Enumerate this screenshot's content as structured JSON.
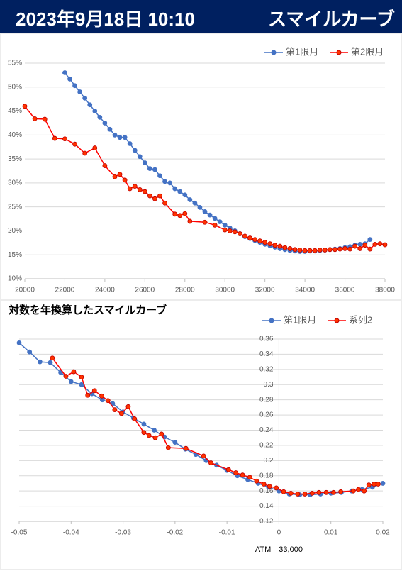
{
  "header": {
    "date": "2023年9月18日 10:10",
    "title": "スマイルカーブ"
  },
  "chart_data": [
    {
      "type": "line",
      "legend": "top-right",
      "grid": true,
      "xlim": [
        20000,
        38000
      ],
      "xticks": [
        20000,
        22000,
        24000,
        26000,
        28000,
        30000,
        32000,
        34000,
        36000,
        38000
      ],
      "ylim": [
        10,
        55
      ],
      "yticks": [
        {
          "value": 10,
          "label": "10%"
        },
        {
          "value": 15,
          "label": "15%"
        },
        {
          "value": 20,
          "label": "20%"
        },
        {
          "value": 25,
          "label": "25%"
        },
        {
          "value": 30,
          "label": "30%"
        },
        {
          "value": 35,
          "label": "35%"
        },
        {
          "value": 40,
          "label": "40%"
        },
        {
          "value": 45,
          "label": "45%"
        },
        {
          "value": 50,
          "label": "50%"
        },
        {
          "value": 55,
          "label": "55%"
        }
      ],
      "series": [
        {
          "name": "第1限月",
          "color": "#4472c4",
          "x": [
            22000,
            22250,
            22500,
            22750,
            23000,
            23250,
            23500,
            23750,
            24000,
            24250,
            24500,
            24750,
            25000,
            25250,
            25500,
            25750,
            26000,
            26250,
            26500,
            26750,
            27000,
            27250,
            27500,
            27750,
            28000,
            28250,
            28500,
            28750,
            29000,
            29250,
            29500,
            29750,
            30000,
            30250,
            30500,
            30750,
            31000,
            31250,
            31500,
            31750,
            32000,
            32250,
            32500,
            32750,
            33000,
            33250,
            33500,
            33750,
            34000,
            34250,
            34500,
            34750,
            35000,
            35250,
            35500,
            35750,
            36000,
            36250,
            36500,
            36750,
            37000,
            37250
          ],
          "values": [
            53,
            51.7,
            50.3,
            49,
            47.7,
            46.3,
            45,
            43.7,
            42.5,
            41.2,
            40,
            39.5,
            39.5,
            38.2,
            36.8,
            35.5,
            34.2,
            33,
            32.8,
            31.5,
            30.3,
            30,
            28.8,
            28.2,
            27.5,
            26.5,
            25.8,
            24.9,
            24,
            23.3,
            22.6,
            21.9,
            21.2,
            20.6,
            20,
            19.4,
            18.8,
            18.4,
            18,
            17.6,
            17.2,
            16.9,
            16.6,
            16.3,
            16.1,
            15.9,
            15.8,
            15.7,
            15.7,
            15.8,
            15.8,
            15.9,
            16,
            16.1,
            16.2,
            16.3,
            16.5,
            16.7,
            17,
            17.2,
            17.3,
            18.2
          ]
        },
        {
          "name": "第2限月",
          "color": "#ff0000",
          "x": [
            20000,
            20500,
            21000,
            21500,
            22000,
            22500,
            23000,
            23500,
            24000,
            24500,
            24750,
            25000,
            25250,
            25500,
            25750,
            26000,
            26250,
            26500,
            26750,
            27000,
            27500,
            27750,
            28000,
            28250,
            29000,
            29500,
            30000,
            30250,
            30500,
            30750,
            31000,
            31250,
            31500,
            31750,
            32000,
            32250,
            32500,
            32750,
            33000,
            33250,
            33500,
            33750,
            34000,
            34250,
            34500,
            34750,
            35000,
            35250,
            35500,
            35750,
            36000,
            36250,
            36500,
            36750,
            37000,
            37250,
            37500,
            37750,
            38000
          ],
          "values": [
            46,
            43.4,
            43.3,
            39.3,
            39.2,
            38.1,
            36.2,
            37.3,
            33.6,
            31.3,
            31.8,
            30.6,
            28.8,
            29.3,
            28.6,
            28.2,
            27.3,
            26.7,
            27.3,
            25.8,
            23.5,
            23.2,
            23.6,
            22,
            21.8,
            21.2,
            20.2,
            20,
            19.8,
            19.4,
            18.9,
            18.5,
            18.2,
            17.9,
            17.6,
            17.3,
            17,
            16.8,
            16.5,
            16.3,
            16.1,
            16,
            15.9,
            15.9,
            15.9,
            16,
            16,
            16.1,
            16.1,
            16.2,
            16.3,
            16.2,
            16.8,
            16.3,
            17,
            16.2,
            17.2,
            17.3,
            17.1
          ]
        }
      ]
    },
    {
      "type": "line",
      "title": "対数を年換算したスマイルカーブ",
      "legend": "top-right",
      "grid": true,
      "annotation": "ATM＝33,000",
      "xlim": [
        -0.05,
        0.02
      ],
      "xticks": [
        -0.05,
        -0.04,
        -0.03,
        -0.02,
        -0.01,
        0,
        0.01,
        0.02
      ],
      "ylim": [
        0.12,
        0.36
      ],
      "yticks": [
        0.12,
        0.14,
        0.16,
        0.18,
        0.2,
        0.22,
        0.24,
        0.26,
        0.28,
        0.3,
        0.32,
        0.34,
        0.36
      ],
      "series": [
        {
          "name": "第1限月",
          "color": "#4472c4",
          "x": [
            -0.05,
            -0.048,
            -0.046,
            -0.044,
            -0.042,
            -0.04,
            -0.038,
            -0.036,
            -0.034,
            -0.032,
            -0.03,
            -0.028,
            -0.026,
            -0.024,
            -0.022,
            -0.02,
            -0.018,
            -0.016,
            -0.014,
            -0.012,
            -0.01,
            -0.008,
            -0.006,
            -0.004,
            -0.002,
            0,
            0.002,
            0.004,
            0.006,
            0.008,
            0.01,
            0.012,
            0.014,
            0.016,
            0.018,
            0.02
          ],
          "values": [
            0.355,
            0.343,
            0.33,
            0.329,
            0.316,
            0.304,
            0.3,
            0.288,
            0.28,
            0.275,
            0.264,
            0.256,
            0.248,
            0.24,
            0.231,
            0.224,
            0.215,
            0.208,
            0.2,
            0.194,
            0.187,
            0.18,
            0.175,
            0.17,
            0.165,
            0.16,
            0.156,
            0.155,
            0.155,
            0.156,
            0.157,
            0.158,
            0.16,
            0.162,
            0.165,
            0.17
          ]
        },
        {
          "name": "系列2",
          "color": "#ff0000",
          "x": [
            -0.0436,
            -0.041,
            -0.0395,
            -0.038,
            -0.0368,
            -0.0355,
            -0.0341,
            -0.0329,
            -0.0316,
            -0.0303,
            -0.029,
            -0.0278,
            -0.026,
            -0.025,
            -0.0238,
            -0.0226,
            -0.0213,
            -0.0179,
            -0.0145,
            -0.0131,
            -0.0097,
            -0.0083,
            -0.007,
            -0.0056,
            -0.0043,
            -0.0029,
            -0.0018,
            -0.0005,
            0.0009,
            0.0023,
            0.0036,
            0.005,
            0.0064,
            0.0077,
            0.0091,
            0.0105,
            0.0119,
            0.0143,
            0.0153,
            0.0164,
            0.0173,
            0.0183,
            0.0191
          ],
          "values": [
            0.335,
            0.311,
            0.317,
            0.31,
            0.286,
            0.292,
            0.285,
            0.279,
            0.267,
            0.262,
            0.271,
            0.255,
            0.237,
            0.233,
            0.23,
            0.235,
            0.217,
            0.216,
            0.206,
            0.197,
            0.188,
            0.184,
            0.181,
            0.178,
            0.173,
            0.169,
            0.166,
            0.164,
            0.159,
            0.157,
            0.156,
            0.156,
            0.157,
            0.158,
            0.158,
            0.158,
            0.159,
            0.16,
            0.162,
            0.16,
            0.168,
            0.169,
            0.169
          ]
        }
      ]
    }
  ]
}
